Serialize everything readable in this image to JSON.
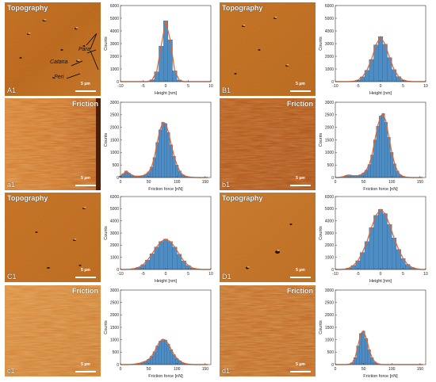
{
  "panels": [
    {
      "id": "A1",
      "title": "Topography",
      "title_pos": "tl",
      "label": "A1",
      "scale": "5 μm"
    },
    {
      "id": "B1",
      "title": "Topography",
      "title_pos": "tl",
      "label": "B1",
      "scale": "5 μm"
    },
    {
      "id": "a1",
      "title": "Friction",
      "title_pos": "tr",
      "label": "a1",
      "scale": "5 μm"
    },
    {
      "id": "b1",
      "title": "Friction",
      "title_pos": "tr",
      "label": "b1",
      "scale": "5 μm"
    },
    {
      "id": "C1",
      "title": "Topography",
      "title_pos": "tl",
      "label": "C1",
      "scale": "5 μm"
    },
    {
      "id": "D1",
      "title": "Topography",
      "title_pos": "tl",
      "label": "D1",
      "scale": "5 μm"
    },
    {
      "id": "c1",
      "title": "Friction",
      "title_pos": "tr",
      "label": "c1",
      "scale": "5 μm"
    },
    {
      "id": "d1",
      "title": "Friction",
      "title_pos": "tr",
      "label": "d1",
      "scale": "5 μm"
    }
  ],
  "annotations": {
    "para": "Para",
    "catana": "Catana",
    "peri": "Peri"
  },
  "colors": {
    "bar": "#4e8cc4",
    "bar_edge": "#2a5d8e",
    "fit": "#e4632a",
    "micro_base": "#c0651a"
  },
  "chart_data": [
    {
      "id": "hist-A1",
      "type": "bar",
      "xlabel": "Height [nm]",
      "ylabel": "Counts",
      "xlim": [
        -10,
        10
      ],
      "ylim": [
        0,
        6000
      ],
      "xticks": [
        -10,
        -5,
        0,
        5,
        10
      ],
      "yticks": [
        0,
        1000,
        2000,
        3000,
        4000,
        5000,
        6000
      ],
      "x": [
        -10,
        -9,
        -8,
        -7,
        -6,
        -5,
        -4,
        -3,
        -2,
        -1,
        0,
        1,
        2,
        3,
        4,
        5,
        6,
        7,
        8,
        9,
        10
      ],
      "values": [
        0,
        0,
        0,
        0,
        0,
        0,
        0,
        150,
        780,
        2800,
        4800,
        3300,
        850,
        130,
        0,
        0,
        0,
        0,
        0,
        0,
        0
      ]
    },
    {
      "id": "hist-B1",
      "type": "bar",
      "xlabel": "Height [nm]",
      "ylabel": "Counts",
      "xlim": [
        -10,
        10
      ],
      "ylim": [
        0,
        6000
      ],
      "xticks": [
        -10,
        -5,
        0,
        5,
        10
      ],
      "yticks": [
        0,
        1000,
        2000,
        3000,
        4000,
        5000,
        6000
      ],
      "x": [
        -10,
        -9,
        -8,
        -7,
        -6,
        -5,
        -4,
        -3,
        -2,
        -1,
        0,
        1,
        2,
        3,
        4,
        5,
        6,
        7,
        8,
        9,
        10
      ],
      "values": [
        0,
        0,
        0,
        0,
        30,
        120,
        380,
        900,
        1750,
        2900,
        3550,
        2950,
        1900,
        950,
        400,
        130,
        40,
        0,
        0,
        0,
        0
      ]
    },
    {
      "id": "hist-a1",
      "type": "bar",
      "xlabel": "Friction force [nN]",
      "ylabel": "Counts",
      "xlim": [
        0,
        160
      ],
      "ylim": [
        0,
        3000
      ],
      "xticks": [
        0,
        50,
        100,
        150
      ],
      "yticks": [
        0,
        500,
        1000,
        1500,
        2000,
        2500,
        3000
      ],
      "x": [
        0,
        5,
        10,
        15,
        20,
        25,
        30,
        35,
        40,
        45,
        50,
        55,
        60,
        65,
        70,
        75,
        80,
        85,
        90,
        95,
        100,
        105,
        110,
        115,
        120,
        125,
        130,
        135,
        140,
        145,
        150,
        155
      ],
      "values": [
        60,
        150,
        260,
        180,
        100,
        60,
        55,
        60,
        80,
        130,
        230,
        420,
        800,
        1400,
        1900,
        2200,
        2150,
        1800,
        1300,
        850,
        500,
        260,
        120,
        60,
        30,
        15,
        8,
        5,
        0,
        0,
        0,
        0
      ]
    },
    {
      "id": "hist-b1",
      "type": "bar",
      "xlabel": "Friction force [nN]",
      "ylabel": "Counts",
      "xlim": [
        0,
        160
      ],
      "ylim": [
        0,
        3000
      ],
      "xticks": [
        0,
        50,
        100,
        150
      ],
      "yticks": [
        0,
        500,
        1000,
        1500,
        2000,
        2500,
        3000
      ],
      "x": [
        0,
        5,
        10,
        15,
        20,
        25,
        30,
        35,
        40,
        45,
        50,
        55,
        60,
        65,
        70,
        75,
        80,
        85,
        90,
        95,
        100,
        105,
        110,
        115,
        120,
        125,
        130,
        135,
        140,
        145,
        150,
        155
      ],
      "values": [
        0,
        0,
        20,
        40,
        90,
        100,
        80,
        70,
        80,
        110,
        180,
        300,
        520,
        900,
        1500,
        2050,
        2450,
        2550,
        2200,
        1600,
        1000,
        550,
        260,
        110,
        50,
        20,
        8,
        0,
        0,
        0,
        0,
        0
      ]
    },
    {
      "id": "hist-C1",
      "type": "bar",
      "xlabel": "Height [nm]",
      "ylabel": "Counts",
      "xlim": [
        -10,
        10
      ],
      "ylim": [
        0,
        6000
      ],
      "xticks": [
        -10,
        -5,
        0,
        5,
        10
      ],
      "yticks": [
        0,
        1000,
        2000,
        3000,
        4000,
        5000,
        6000
      ],
      "x": [
        -10,
        -9,
        -8,
        -7,
        -6,
        -5,
        -4,
        -3,
        -2,
        -1,
        0,
        1,
        2,
        3,
        4,
        5,
        6,
        7,
        8,
        9,
        10
      ],
      "values": [
        0,
        0,
        20,
        70,
        180,
        400,
        780,
        1300,
        1850,
        2300,
        2500,
        2300,
        1850,
        1250,
        700,
        330,
        120,
        40,
        0,
        0,
        0
      ]
    },
    {
      "id": "hist-D1",
      "type": "bar",
      "xlabel": "Height [nm]",
      "ylabel": "Counts",
      "xlim": [
        -10,
        10
      ],
      "ylim": [
        0,
        6000
      ],
      "xticks": [
        -10,
        -5,
        0,
        5,
        10
      ],
      "yticks": [
        0,
        1000,
        2000,
        3000,
        4000,
        5000,
        6000
      ],
      "x": [
        -10,
        -9,
        -8,
        -7,
        -6,
        -5,
        -4,
        -3,
        -2,
        -1,
        0,
        1,
        2,
        3,
        4,
        5,
        6,
        7,
        8,
        9,
        10
      ],
      "values": [
        0,
        0,
        30,
        120,
        330,
        720,
        1400,
        2300,
        3450,
        4450,
        4950,
        4600,
        3700,
        2600,
        1650,
        900,
        420,
        170,
        60,
        0,
        0
      ]
    },
    {
      "id": "hist-c1",
      "type": "bar",
      "xlabel": "Friction force [nN]",
      "ylabel": "Counts",
      "xlim": [
        0,
        160
      ],
      "ylim": [
        0,
        3000
      ],
      "xticks": [
        0,
        50,
        100,
        150
      ],
      "yticks": [
        0,
        500,
        1000,
        1500,
        2000,
        2500,
        3000
      ],
      "x": [
        0,
        5,
        10,
        15,
        20,
        25,
        30,
        35,
        40,
        45,
        50,
        55,
        60,
        65,
        70,
        75,
        80,
        85,
        90,
        95,
        100,
        105,
        110,
        115,
        120,
        125,
        130,
        135,
        140,
        145,
        150,
        155
      ],
      "values": [
        0,
        0,
        0,
        0,
        10,
        20,
        40,
        60,
        100,
        140,
        220,
        340,
        520,
        750,
        940,
        1020,
        980,
        820,
        600,
        400,
        250,
        150,
        80,
        40,
        20,
        10,
        0,
        0,
        0,
        0,
        0,
        0
      ]
    },
    {
      "id": "hist-d1",
      "type": "bar",
      "xlabel": "Friction force [nN]",
      "ylabel": "Counts",
      "xlim": [
        0,
        160
      ],
      "ylim": [
        0,
        3000
      ],
      "xticks": [
        0,
        50,
        100,
        150
      ],
      "yticks": [
        0,
        500,
        1000,
        1500,
        2000,
        2500,
        3000
      ],
      "x": [
        0,
        5,
        10,
        15,
        20,
        25,
        30,
        35,
        40,
        45,
        50,
        55,
        60,
        65,
        70,
        75,
        80,
        85,
        90,
        95,
        100,
        105,
        110,
        115,
        120,
        125,
        130,
        135,
        140,
        145,
        150,
        155
      ],
      "values": [
        0,
        0,
        0,
        0,
        0,
        20,
        80,
        280,
        750,
        1250,
        1350,
        1050,
        600,
        280,
        110,
        40,
        10,
        0,
        0,
        0,
        0,
        0,
        0,
        0,
        0,
        0,
        0,
        0,
        0,
        0,
        0,
        0
      ]
    }
  ]
}
